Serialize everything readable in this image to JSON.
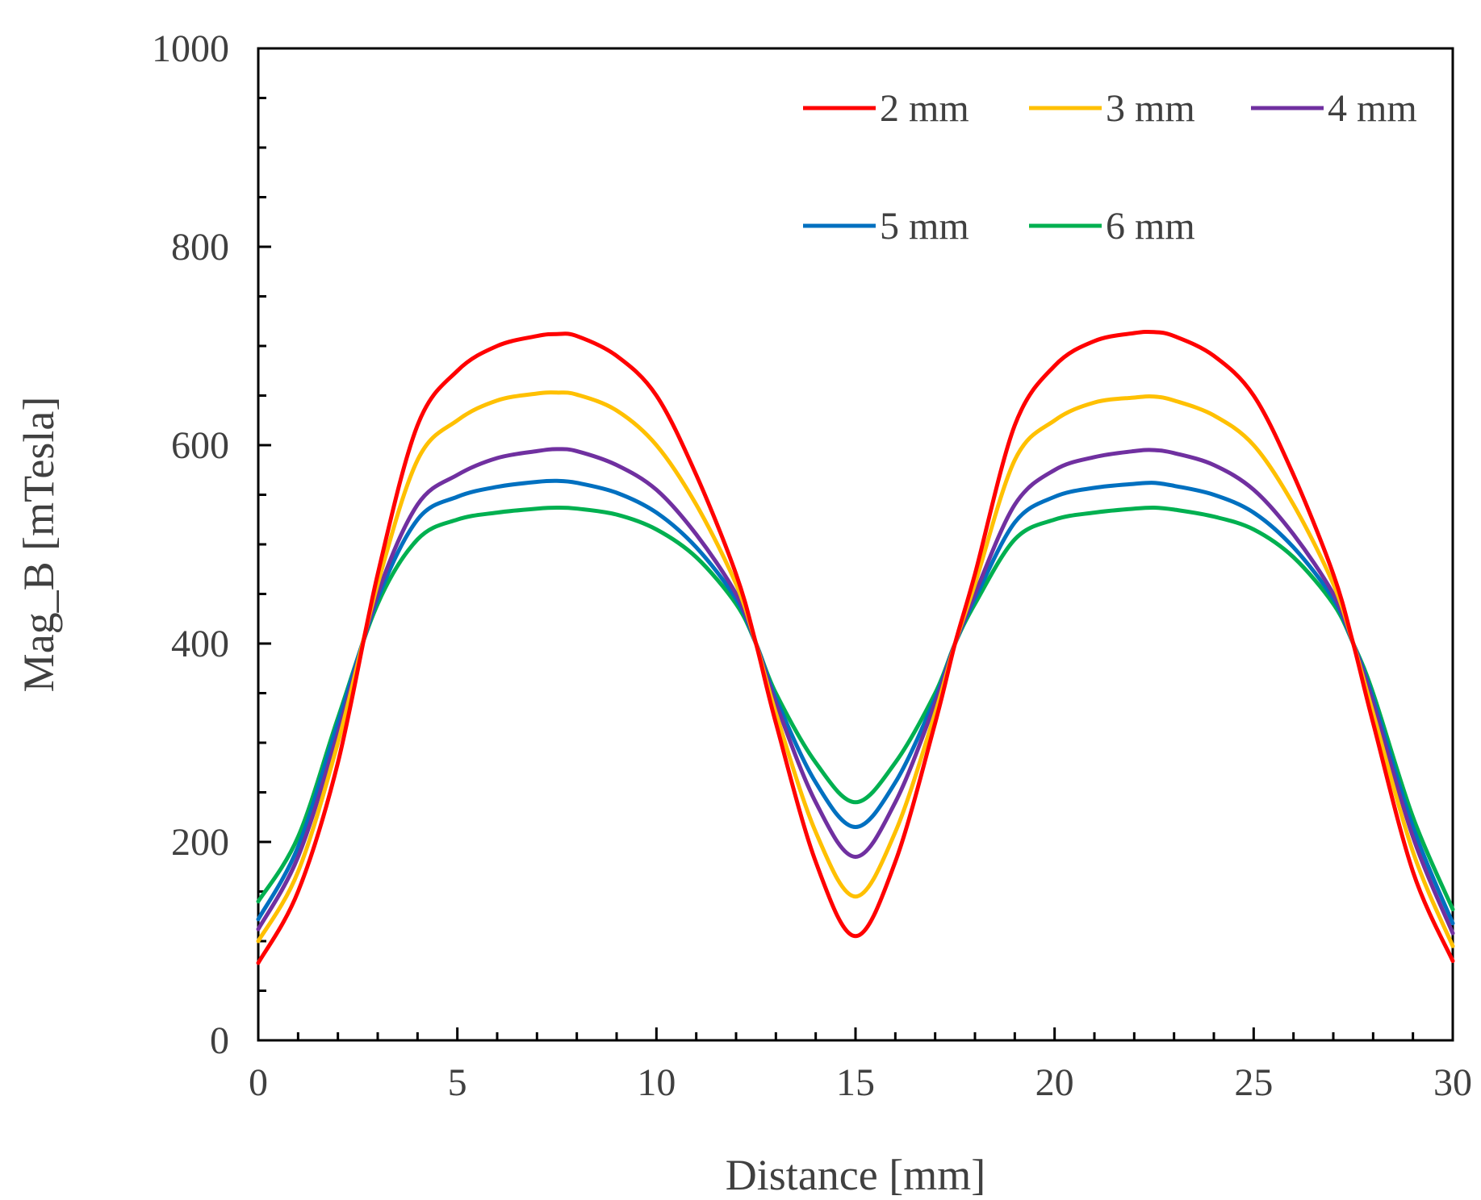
{
  "chart_data": {
    "type": "line",
    "title": "",
    "xlabel": "Distance [mm]",
    "ylabel": "Mag_B [mTesla]",
    "xlim": [
      0,
      30
    ],
    "ylim": [
      0,
      1000
    ],
    "xticks": [
      0,
      5,
      10,
      15,
      20,
      25,
      30
    ],
    "yticks": [
      0,
      200,
      400,
      600,
      800,
      1000
    ],
    "xticks_labels": [
      "0",
      "5",
      "10",
      "15",
      "20",
      "25",
      "30"
    ],
    "yticks_labels": [
      "0",
      "200",
      "400",
      "600",
      "800",
      "1000"
    ],
    "grid": false,
    "legend_position": "top-right",
    "x": [
      0,
      1,
      2,
      3,
      4,
      5,
      6,
      7,
      7.5,
      8,
      9,
      10,
      11,
      12,
      12.5,
      13,
      14,
      15,
      16,
      17,
      17.5,
      18,
      19,
      20,
      21,
      22,
      22.5,
      23,
      24,
      25,
      26,
      27,
      27.5,
      28,
      29,
      30
    ],
    "series": [
      {
        "name": "2 mm",
        "color": "#ff0000",
        "values": [
          78,
          150,
          280,
          470,
          620,
          675,
          700,
          710,
          712,
          710,
          690,
          650,
          570,
          470,
          400,
          320,
          180,
          105,
          180,
          320,
          400,
          470,
          620,
          680,
          705,
          713,
          714,
          710,
          690,
          650,
          570,
          470,
          400,
          320,
          170,
          80
        ]
      },
      {
        "name": "3 mm",
        "color": "#ffc000",
        "values": [
          100,
          170,
          300,
          460,
          585,
          625,
          645,
          652,
          653,
          651,
          635,
          600,
          540,
          460,
          400,
          330,
          210,
          145,
          210,
          330,
          400,
          460,
          585,
          625,
          643,
          648,
          649,
          645,
          630,
          600,
          540,
          460,
          400,
          330,
          190,
          95
        ]
      },
      {
        "name": "4 mm",
        "color": "#7030a0",
        "values": [
          112,
          185,
          310,
          450,
          540,
          570,
          587,
          594,
          596,
          594,
          580,
          555,
          510,
          450,
          400,
          340,
          240,
          185,
          240,
          340,
          400,
          450,
          540,
          575,
          588,
          594,
          595,
          592,
          580,
          555,
          510,
          450,
          400,
          340,
          205,
          108
        ]
      },
      {
        "name": "5 mm",
        "color": "#0070c0",
        "values": [
          122,
          195,
          320,
          445,
          525,
          548,
          558,
          563,
          564,
          562,
          552,
          532,
          497,
          445,
          400,
          345,
          260,
          215,
          260,
          345,
          400,
          445,
          522,
          548,
          557,
          561,
          562,
          559,
          550,
          532,
          497,
          445,
          400,
          345,
          215,
          118
        ]
      },
      {
        "name": "6 mm",
        "color": "#00b050",
        "values": [
          140,
          205,
          325,
          440,
          505,
          525,
          532,
          536,
          537,
          536,
          530,
          515,
          487,
          440,
          400,
          350,
          280,
          240,
          280,
          350,
          400,
          440,
          505,
          525,
          532,
          536,
          537,
          535,
          528,
          515,
          487,
          440,
          400,
          350,
          225,
          132
        ]
      }
    ]
  }
}
